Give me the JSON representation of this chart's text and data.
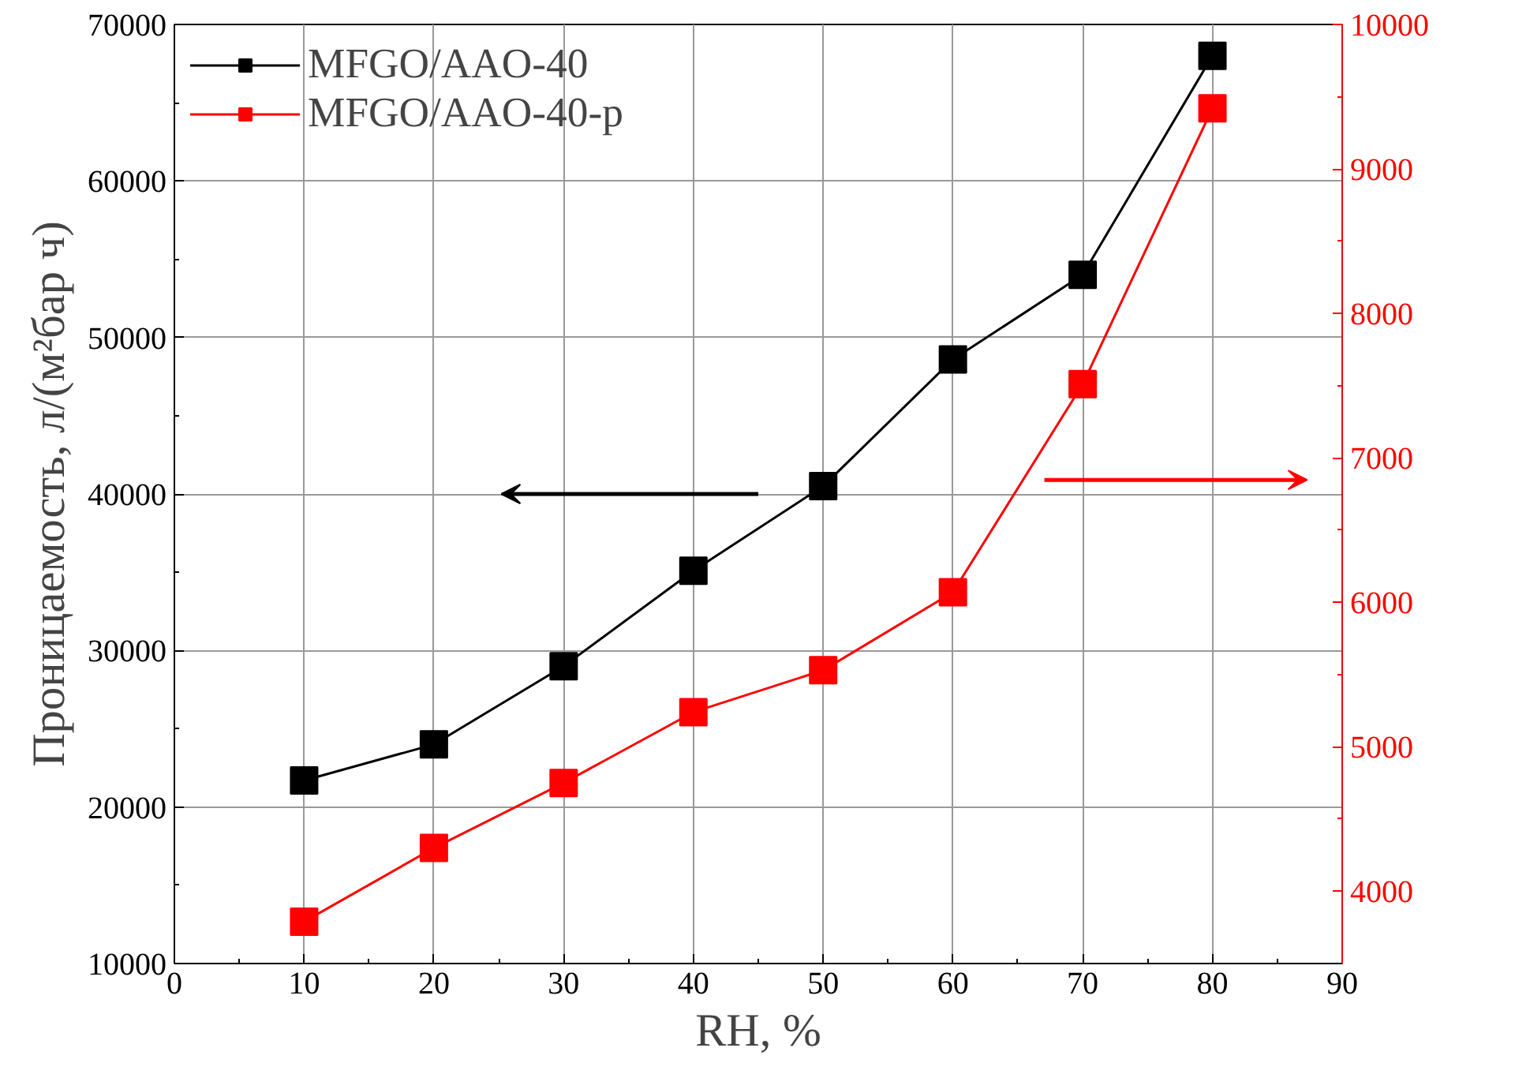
{
  "chart_data": {
    "type": "line",
    "xlabel": "RH, %",
    "ylabel": "Проницаемость, л/(м²бар ч)",
    "x": [
      10,
      20,
      30,
      40,
      50,
      60,
      70,
      80
    ],
    "series": [
      {
        "name": "MFGO/AAO-40",
        "color": "#000000",
        "values": [
          21700,
          24000,
          29000,
          35100,
          40500,
          48600,
          54000,
          68000
        ]
      },
      {
        "name": "MFGO/AAO-40-p",
        "color": "#ff0000",
        "axis": "y2",
        "values": [
          3790,
          4300,
          4750,
          5240,
          5530,
          6070,
          7510,
          9420
        ]
      }
    ],
    "xlim": [
      0,
      90
    ],
    "xticks": [
      0,
      10,
      20,
      30,
      40,
      50,
      60,
      70,
      80,
      90
    ],
    "ylim": [
      10000,
      70000
    ],
    "yticks": [
      10000,
      20000,
      30000,
      40000,
      50000,
      60000,
      70000
    ],
    "y2lim": [
      3500,
      10000
    ],
    "y2ticks": [
      4000,
      5000,
      6000,
      7000,
      8000,
      9000,
      10000
    ],
    "grid": true,
    "legend": "top left",
    "marker": "square",
    "line_style": "solid"
  }
}
